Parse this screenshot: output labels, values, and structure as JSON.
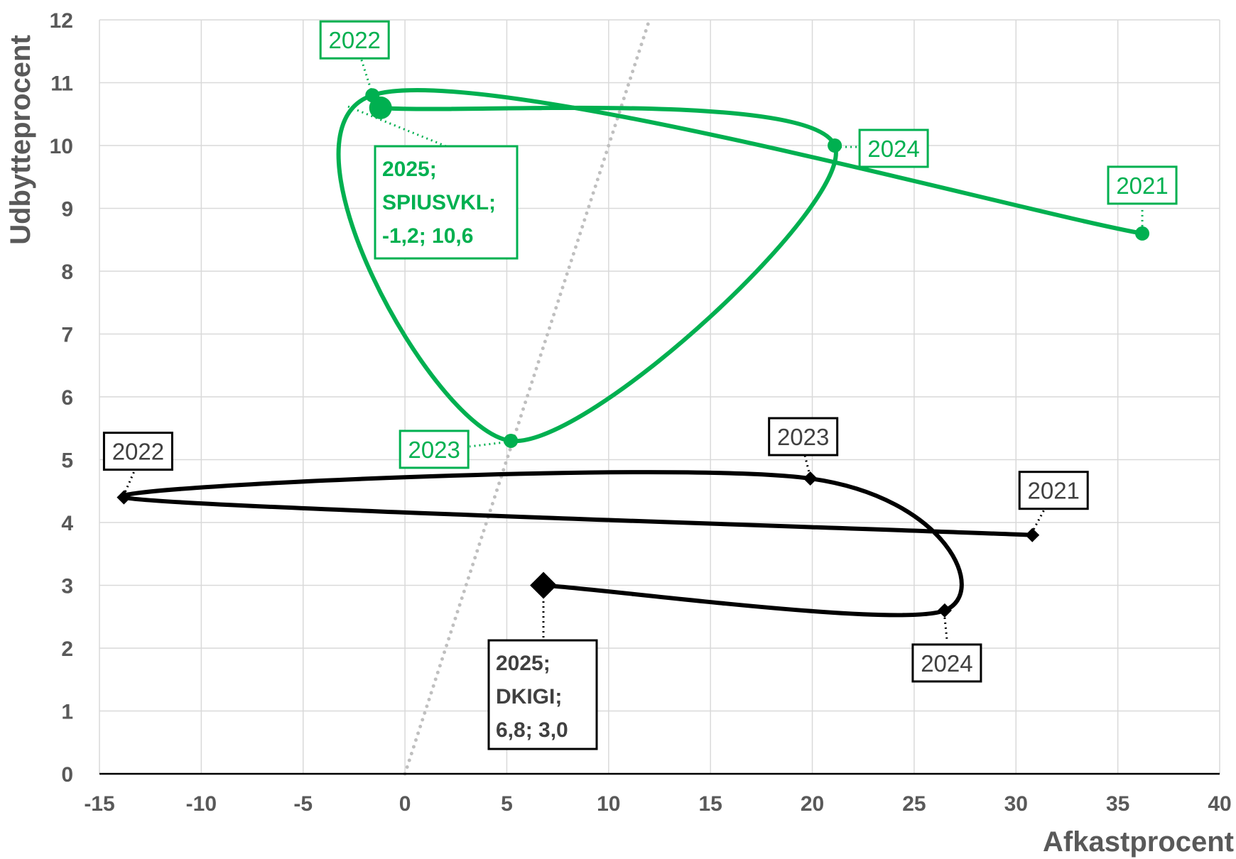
{
  "chart_data": {
    "type": "scatter",
    "xlabel": "Afkastprocent",
    "ylabel": "Udbytteprocent",
    "xlim": [
      -15,
      40
    ],
    "ylim": [
      0,
      12
    ],
    "x_ticks": [
      -15,
      -10,
      -5,
      0,
      5,
      10,
      15,
      20,
      25,
      30,
      35,
      40
    ],
    "y_ticks": [
      0,
      1,
      2,
      3,
      4,
      5,
      6,
      7,
      8,
      9,
      10,
      11,
      12
    ],
    "grid": true,
    "reference_line": {
      "style": "dotted",
      "color": "#bfbfbf",
      "points": [
        [
          0,
          0
        ],
        [
          12,
          12
        ]
      ]
    },
    "series": [
      {
        "color": "#00b050",
        "marker": "circle",
        "smooth": true,
        "points": [
          {
            "x": 36.2,
            "y": 8.6,
            "label": "2021"
          },
          {
            "x": -1.6,
            "y": 10.8,
            "label": "2022"
          },
          {
            "x": 5.2,
            "y": 5.3,
            "label": "2023"
          },
          {
            "x": 21.1,
            "y": 10.0,
            "label": "2024"
          },
          {
            "x": -1.2,
            "y": 10.6,
            "label": "2025;",
            "label_lines": [
              "2025;",
              "SPIUSVKL;",
              "-1,2; 10,6"
            ]
          }
        ]
      },
      {
        "color": "#000000",
        "marker": "diamond",
        "smooth": true,
        "points": [
          {
            "x": 30.8,
            "y": 3.8,
            "label": "2021"
          },
          {
            "x": -13.8,
            "y": 4.4,
            "label": "2022"
          },
          {
            "x": 19.9,
            "y": 4.7,
            "label": "2023"
          },
          {
            "x": 26.5,
            "y": 2.6,
            "label": "2024"
          },
          {
            "x": 6.8,
            "y": 3.0,
            "label": "2025;",
            "label_lines": [
              "2025;",
              "DKIGI;",
              "6,8; 3,0"
            ]
          }
        ]
      }
    ]
  }
}
